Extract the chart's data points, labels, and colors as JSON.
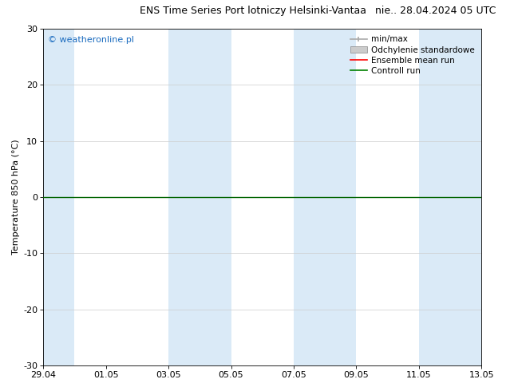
{
  "title_left": "ENS Time Series Port lotniczy Helsinki-Vantaa",
  "title_right": "nie.. 28.04.2024 05 UTC",
  "ylabel": "Temperature 850 hPa (°C)",
  "ylim": [
    -30,
    30
  ],
  "yticks": [
    -30,
    -20,
    -10,
    0,
    10,
    20,
    30
  ],
  "xtick_labels": [
    "29.04",
    "01.05",
    "03.05",
    "05.05",
    "07.05",
    "09.05",
    "11.05",
    "13.05"
  ],
  "background_color": "#ffffff",
  "plot_bg_color": "#ffffff",
  "shaded_band_color": "#daeaf7",
  "watermark_text": "© weatheronline.pl",
  "watermark_color": "#1a6bbf",
  "legend_items": [
    {
      "label": "min/max",
      "color": "#aaaaaa",
      "style": "line_with_caps"
    },
    {
      "label": "Odchylenie standardowe",
      "color": "#cccccc",
      "style": "filled_bar"
    },
    {
      "label": "Ensemble mean run",
      "color": "#ff0000",
      "style": "line"
    },
    {
      "label": "Controll run",
      "color": "#008000",
      "style": "line"
    }
  ],
  "zero_line_y": 0,
  "zero_line_color": "#006400",
  "fig_width": 6.34,
  "fig_height": 4.9,
  "dpi": 100,
  "title_fontsize": 9,
  "tick_fontsize": 8,
  "ylabel_fontsize": 8,
  "legend_fontsize": 7.5,
  "watermark_fontsize": 8
}
